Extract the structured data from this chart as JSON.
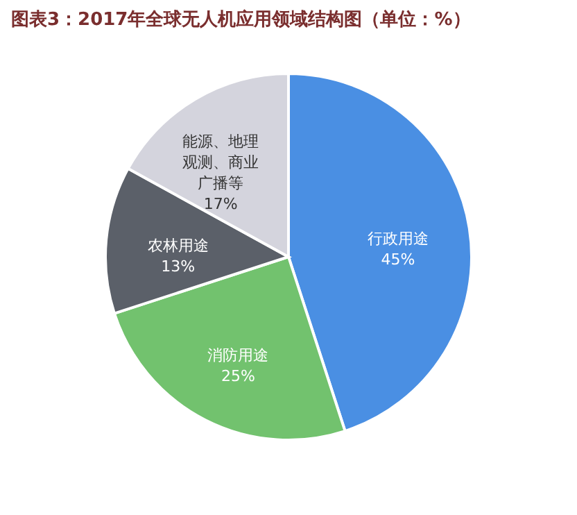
{
  "chart_data": {
    "type": "pie",
    "title": "图表3：2017年全球无人机应用领域结构图（单位：%）",
    "categories": [
      "行政用途",
      "消防用途",
      "农林用途",
      "能源、地理观测、商业广播等"
    ],
    "values": [
      45,
      25,
      13,
      17
    ],
    "colors": [
      "#4a8fe3",
      "#72c26e",
      "#5b6069",
      "#d4d4dd"
    ],
    "value_labels": [
      "45%",
      "25%",
      "13%",
      "17%"
    ],
    "legend": false
  }
}
